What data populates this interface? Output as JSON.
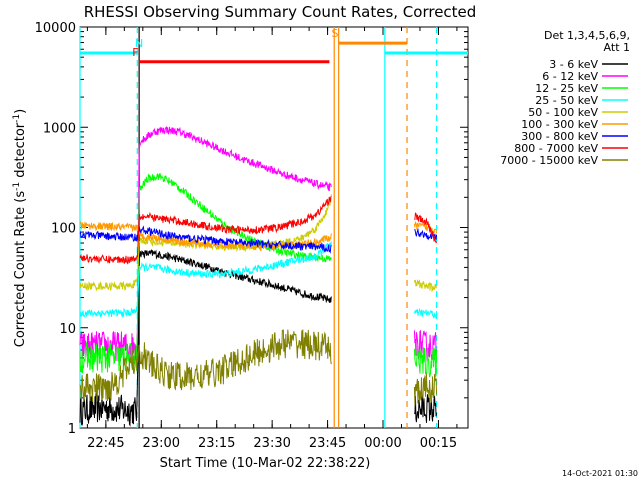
{
  "chart_data": {
    "type": "line",
    "title": "RHESSI Observing Summary Count Rates, Corrected",
    "xlabel": "Start Time (10-Mar-02 22:38:22)",
    "ylabel_main": "Corrected Count Rate (s",
    "ylabel_sup1": "-1",
    "ylabel_mid": " detector",
    "ylabel_sup2": "-1",
    "ylabel_end": ")",
    "footer": "14-Oct-2021 01:30",
    "y_scale": "log",
    "ylim": [
      1,
      10000
    ],
    "x_domain_minutes_after_2238": [
      0,
      105
    ],
    "x_ticks": [
      {
        "label": "22:45",
        "m": 7
      },
      {
        "label": "23:00",
        "m": 22
      },
      {
        "label": "23:15",
        "m": 37
      },
      {
        "label": "23:30",
        "m": 52
      },
      {
        "label": "23:45",
        "m": 67
      },
      {
        "label": "00:00",
        "m": 82
      },
      {
        "label": "00:15",
        "m": 97
      }
    ],
    "y_ticks": [
      {
        "label": "1",
        "v": 1
      },
      {
        "label": "10",
        "v": 10
      },
      {
        "label": "100",
        "v": 100
      },
      {
        "label": "1000",
        "v": 1000
      },
      {
        "label": "10000",
        "v": 10000
      }
    ],
    "legend_header": [
      "Det 1,3,4,5,6,9,",
      "Att 1"
    ],
    "legend_position": "right",
    "series": [
      {
        "name": "3 - 6 keV",
        "color": "#000000",
        "points": [
          [
            0,
            1.5
          ],
          [
            7,
            1.6
          ],
          [
            13,
            1.5
          ],
          [
            15.5,
            1.5
          ],
          [
            16,
            55
          ],
          [
            20,
            55
          ],
          [
            25,
            50
          ],
          [
            30,
            45
          ],
          [
            35,
            40
          ],
          [
            40,
            35
          ],
          [
            45,
            31
          ],
          [
            50,
            28
          ],
          [
            55,
            25
          ],
          [
            60,
            22
          ],
          [
            65,
            20
          ],
          [
            68,
            19
          ]
        ],
        "points2": [
          [
            90.5,
            1.5
          ],
          [
            94,
            1.6
          ],
          [
            96.5,
            1.5
          ]
        ]
      },
      {
        "name": "6 - 12 keV",
        "color": "#ff00ff",
        "points": [
          [
            0,
            6.5
          ],
          [
            7,
            6.6
          ],
          [
            13,
            6.5
          ],
          [
            15.5,
            6.8
          ],
          [
            16,
            700
          ],
          [
            20,
            900
          ],
          [
            23,
            950
          ],
          [
            27,
            900
          ],
          [
            32,
            750
          ],
          [
            38,
            600
          ],
          [
            44,
            480
          ],
          [
            50,
            400
          ],
          [
            55,
            340
          ],
          [
            60,
            300
          ],
          [
            64,
            270
          ],
          [
            68,
            250
          ]
        ],
        "points2": [
          [
            90.5,
            7
          ],
          [
            94,
            6.5
          ],
          [
            96.5,
            6.5
          ]
        ]
      },
      {
        "name": "12 - 25 keV",
        "color": "#00ff00",
        "points": [
          [
            0,
            5
          ],
          [
            7,
            5
          ],
          [
            13,
            5
          ],
          [
            15.5,
            5.2
          ],
          [
            16,
            230
          ],
          [
            18,
            300
          ],
          [
            21,
            330
          ],
          [
            25,
            280
          ],
          [
            30,
            200
          ],
          [
            35,
            140
          ],
          [
            40,
            100
          ],
          [
            45,
            80
          ],
          [
            50,
            65
          ],
          [
            55,
            57
          ],
          [
            60,
            52
          ],
          [
            65,
            50
          ],
          [
            68,
            48
          ]
        ],
        "points2": [
          [
            90.5,
            5
          ],
          [
            94,
            4.5
          ],
          [
            96.5,
            4.5
          ]
        ]
      },
      {
        "name": "25 - 50 keV",
        "color": "#00ffff",
        "points": [
          [
            0,
            14
          ],
          [
            7,
            14
          ],
          [
            13,
            14
          ],
          [
            15.5,
            15
          ],
          [
            16,
            40
          ],
          [
            20,
            40
          ],
          [
            25,
            37
          ],
          [
            30,
            35
          ],
          [
            35,
            34
          ],
          [
            40,
            35
          ],
          [
            45,
            37
          ],
          [
            50,
            40
          ],
          [
            55,
            44
          ],
          [
            60,
            48
          ],
          [
            64,
            52
          ],
          [
            68,
            70
          ]
        ],
        "points2": [
          [
            90.5,
            14
          ],
          [
            94,
            14
          ],
          [
            96.5,
            13.5
          ]
        ],
        "fiveline": 5500
      },
      {
        "name": "50 - 100 keV",
        "color": "#cccc00",
        "points": [
          [
            0,
            26
          ],
          [
            7,
            26
          ],
          [
            13,
            26
          ],
          [
            15.5,
            28
          ],
          [
            16,
            75
          ],
          [
            20,
            72
          ],
          [
            25,
            70
          ],
          [
            30,
            68
          ],
          [
            35,
            66
          ],
          [
            40,
            64
          ],
          [
            45,
            64
          ],
          [
            50,
            66
          ],
          [
            55,
            70
          ],
          [
            60,
            78
          ],
          [
            64,
            100
          ],
          [
            67,
            150
          ],
          [
            68,
            200
          ]
        ],
        "points2": [
          [
            90.5,
            28
          ],
          [
            94,
            26
          ],
          [
            96.5,
            25
          ]
        ]
      },
      {
        "name": "100 - 300 keV",
        "color": "#ff9900",
        "points": [
          [
            0,
            105
          ],
          [
            7,
            102
          ],
          [
            13,
            100
          ],
          [
            15.5,
            100
          ],
          [
            16,
            82
          ],
          [
            20,
            80
          ],
          [
            25,
            75
          ],
          [
            30,
            70
          ],
          [
            35,
            68
          ],
          [
            40,
            66
          ],
          [
            45,
            65
          ],
          [
            50,
            64
          ],
          [
            55,
            65
          ],
          [
            60,
            68
          ],
          [
            64,
            72
          ],
          [
            68,
            80
          ]
        ],
        "points2": [
          [
            90.5,
            105
          ],
          [
            94,
            100
          ],
          [
            96.5,
            95
          ]
        ]
      },
      {
        "name": "300 - 800 keV",
        "color": "#0000ff",
        "points": [
          [
            0,
            85
          ],
          [
            7,
            82
          ],
          [
            13,
            80
          ],
          [
            15.5,
            80
          ],
          [
            16,
            95
          ],
          [
            20,
            90
          ],
          [
            25,
            82
          ],
          [
            30,
            78
          ],
          [
            35,
            75
          ],
          [
            40,
            72
          ],
          [
            45,
            70
          ],
          [
            50,
            68
          ],
          [
            55,
            66
          ],
          [
            60,
            65
          ],
          [
            64,
            64
          ],
          [
            68,
            62
          ]
        ],
        "points2": [
          [
            90.5,
            90
          ],
          [
            94,
            85
          ],
          [
            96.5,
            80
          ]
        ]
      },
      {
        "name": "800 - 7000 keV",
        "color": "#ff0000",
        "points": [
          [
            0,
            50
          ],
          [
            7,
            48
          ],
          [
            13,
            48
          ],
          [
            15.5,
            50
          ],
          [
            16,
            130
          ],
          [
            20,
            125
          ],
          [
            25,
            118
          ],
          [
            30,
            110
          ],
          [
            35,
            102
          ],
          [
            40,
            96
          ],
          [
            45,
            94
          ],
          [
            50,
            96
          ],
          [
            55,
            102
          ],
          [
            60,
            115
          ],
          [
            64,
            135
          ],
          [
            68,
            200
          ]
        ],
        "points2": [
          [
            90.5,
            130
          ],
          [
            94,
            110
          ],
          [
            96.5,
            70
          ]
        ]
      },
      {
        "name": "7000 - 15000 keV",
        "color": "#808000",
        "points": [
          [
            0,
            2.5
          ],
          [
            7,
            2.5
          ],
          [
            10,
            3
          ],
          [
            13,
            4
          ],
          [
            15.5,
            5
          ],
          [
            16,
            6
          ],
          [
            20,
            4
          ],
          [
            25,
            3.3
          ],
          [
            30,
            3.2
          ],
          [
            35,
            3.4
          ],
          [
            40,
            4
          ],
          [
            45,
            5
          ],
          [
            50,
            6
          ],
          [
            55,
            7
          ],
          [
            60,
            7
          ],
          [
            64,
            6.5
          ],
          [
            68,
            6
          ]
        ],
        "points2": [
          [
            90.5,
            2.2
          ],
          [
            94,
            2.5
          ],
          [
            96.5,
            2.5
          ]
        ]
      }
    ],
    "bars": [
      {
        "name": "N",
        "color": "#00ffff",
        "segments": [
          [
            0,
            15.5
          ],
          [
            82.5,
            105
          ]
        ],
        "value": 5500,
        "marker_min": 16
      },
      {
        "name": "F",
        "color": "#ff0000",
        "segments": [
          [
            16,
            67.5
          ]
        ],
        "value": 4500,
        "marker_min": 15
      },
      {
        "name": "S",
        "color": "#ff8800",
        "segments": [
          [
            70,
            88.5
          ]
        ],
        "value": 6900,
        "marker_min": 69
      }
    ],
    "vlines_solid": [
      {
        "m": 0,
        "color": "#00ffff"
      },
      {
        "m": 16,
        "color": "#000000"
      },
      {
        "m": 68.8,
        "color": "#ff8800"
      },
      {
        "m": 70,
        "color": "#ff8800"
      },
      {
        "m": 82.5,
        "color": "#00ffff"
      }
    ],
    "vlines_dashed": [
      {
        "m": 15.5,
        "color": "#00ffff"
      },
      {
        "m": 88.5,
        "color": "#ff8800"
      },
      {
        "m": 96.5,
        "color": "#00ffff"
      }
    ]
  }
}
